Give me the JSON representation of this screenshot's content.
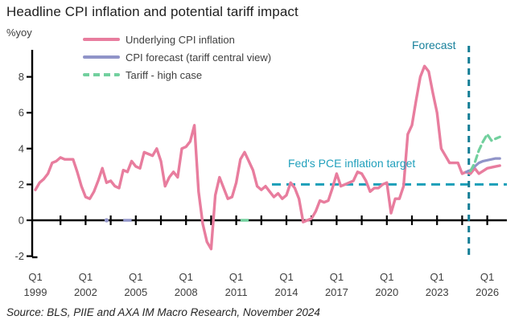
{
  "source": "Source: BLS, PIIE and AXA IM Macro Research, November 2024",
  "chart_data": {
    "type": "line",
    "title": "Headline CPI inflation and potential tariff impact",
    "ylabel": "%yoy",
    "x_axis": {
      "quarter_label": "Q1",
      "years": [
        "1999",
        "2002",
        "2005",
        "2008",
        "2011",
        "2014",
        "2017",
        "2020",
        "2023",
        "2026"
      ],
      "tick_interval_quarters": 6,
      "label_interval_quarters": 12
    },
    "y_axis": {
      "ticks": [
        8,
        6,
        4,
        2,
        0,
        -2
      ],
      "ylim": [
        -2.4,
        9.5
      ],
      "grid": false
    },
    "legend_position": "top-left",
    "series": [
      {
        "name": "Underlying CPI inflation",
        "color": "#e87d9e",
        "style": "solid",
        "start": "1999Q1",
        "values": [
          1.7,
          2.1,
          2.3,
          2.6,
          3.2,
          3.3,
          3.5,
          3.4,
          3.4,
          3.4,
          2.7,
          1.9,
          1.3,
          1.2,
          1.6,
          2.2,
          2.9,
          2.1,
          2.2,
          1.9,
          1.8,
          2.8,
          2.7,
          3.3,
          3.0,
          2.9,
          3.8,
          3.7,
          3.6,
          4.0,
          3.3,
          1.9,
          2.4,
          2.7,
          2.4,
          4.0,
          4.1,
          4.4,
          5.3,
          1.6,
          -0.2,
          -1.2,
          -1.6,
          1.4,
          2.4,
          1.8,
          1.2,
          1.3,
          2.1,
          3.4,
          3.8,
          3.3,
          2.8,
          1.9,
          1.7,
          1.9,
          1.6,
          1.3,
          1.5,
          1.2,
          1.4,
          2.1,
          1.8,
          1.2,
          -0.1,
          0.0,
          0.1,
          0.5,
          1.1,
          1.0,
          1.1,
          1.8,
          2.6,
          1.9,
          2.0,
          2.1,
          2.2,
          2.7,
          2.6,
          2.2,
          1.6,
          1.8,
          1.8,
          2.0,
          2.1,
          0.4,
          1.2,
          1.2,
          1.9,
          4.8,
          5.3,
          6.7,
          8.0,
          8.6,
          8.3,
          7.1,
          6.0,
          4.0,
          3.6,
          3.2,
          3.2,
          3.2,
          2.6,
          2.7,
          2.6,
          2.9,
          2.6,
          2.75,
          2.9,
          2.95,
          3.0,
          3.05
        ]
      },
      {
        "name": "CPI forecast (tariff central view)",
        "color": "#9094c8",
        "style": "solid",
        "start": "2024Q4",
        "values": [
          2.7,
          2.8,
          3.0,
          3.2,
          3.3,
          3.35,
          3.4,
          3.45,
          3.45
        ]
      },
      {
        "name": "Tariff - high case",
        "color": "#72d09e",
        "style": "dashed",
        "start": "2025Q1",
        "values": [
          2.75,
          3.2,
          3.9,
          4.4,
          4.8,
          4.45,
          4.55,
          4.65
        ]
      }
    ],
    "zero_marks": [
      {
        "kind": "dot",
        "color": "#9094c8",
        "quarter": "2003Q2"
      },
      {
        "kind": "dash",
        "color": "#9094c8",
        "from": "2004Q2",
        "to": "2004Q4"
      },
      {
        "kind": "dash",
        "color": "#72d09e",
        "from": "2011Q2",
        "to": "2011Q4"
      }
    ],
    "annotations": {
      "forecast_label": "Forecast",
      "forecast_label_color": "#17809b",
      "forecast_boundary_after": "2024Q4",
      "divider_color": "#137d95",
      "target_label": "Fed's PCE inflation target",
      "target_label_color": "#21a0bc",
      "target_value": 2,
      "target_line_color": "#1b9fb8"
    }
  }
}
